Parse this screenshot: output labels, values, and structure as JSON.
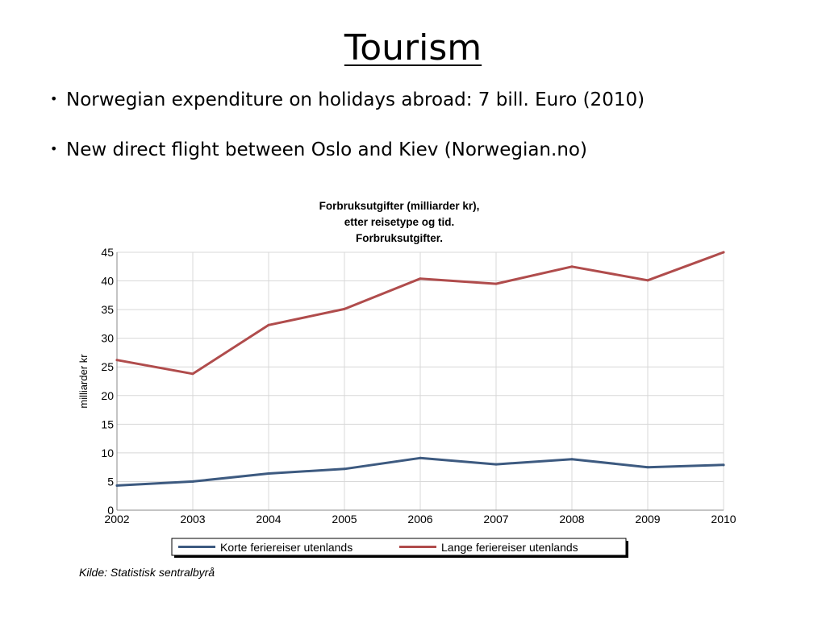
{
  "slide": {
    "title": "Tourism",
    "bullets": [
      "Norwegian expenditure on holidays abroad: 7 bill. Euro (2010)",
      "New direct flight between Oslo and Kiev (Norwegian.no)"
    ],
    "bullet_symbol": "•"
  },
  "chart_data": {
    "type": "line",
    "title_lines": [
      "Forbruksutgifter (milliarder kr),",
      "etter reisetype og tid.",
      "Forbruksutgifter."
    ],
    "xlabel": "",
    "ylabel": "milliarder kr",
    "x": [
      "2002",
      "2003",
      "2004",
      "2005",
      "2006",
      "2007",
      "2008",
      "2009",
      "2010"
    ],
    "ylim": [
      0,
      45
    ],
    "yticks": [
      0,
      5,
      10,
      15,
      20,
      25,
      30,
      35,
      40,
      45
    ],
    "grid": true,
    "legend_position": "bottom",
    "series": [
      {
        "name": "Korte feriereiser utenlands",
        "color": "#3d5a80",
        "values": [
          4.3,
          5.0,
          6.4,
          7.2,
          9.1,
          8.0,
          8.9,
          7.5,
          7.9
        ]
      },
      {
        "name": "Lange feriereiser utenlands",
        "color": "#b04c4c",
        "values": [
          26.2,
          23.8,
          32.3,
          35.1,
          40.4,
          39.5,
          42.5,
          40.1,
          45.0
        ]
      }
    ],
    "source": "Kilde: Statistisk sentralbyrå"
  }
}
